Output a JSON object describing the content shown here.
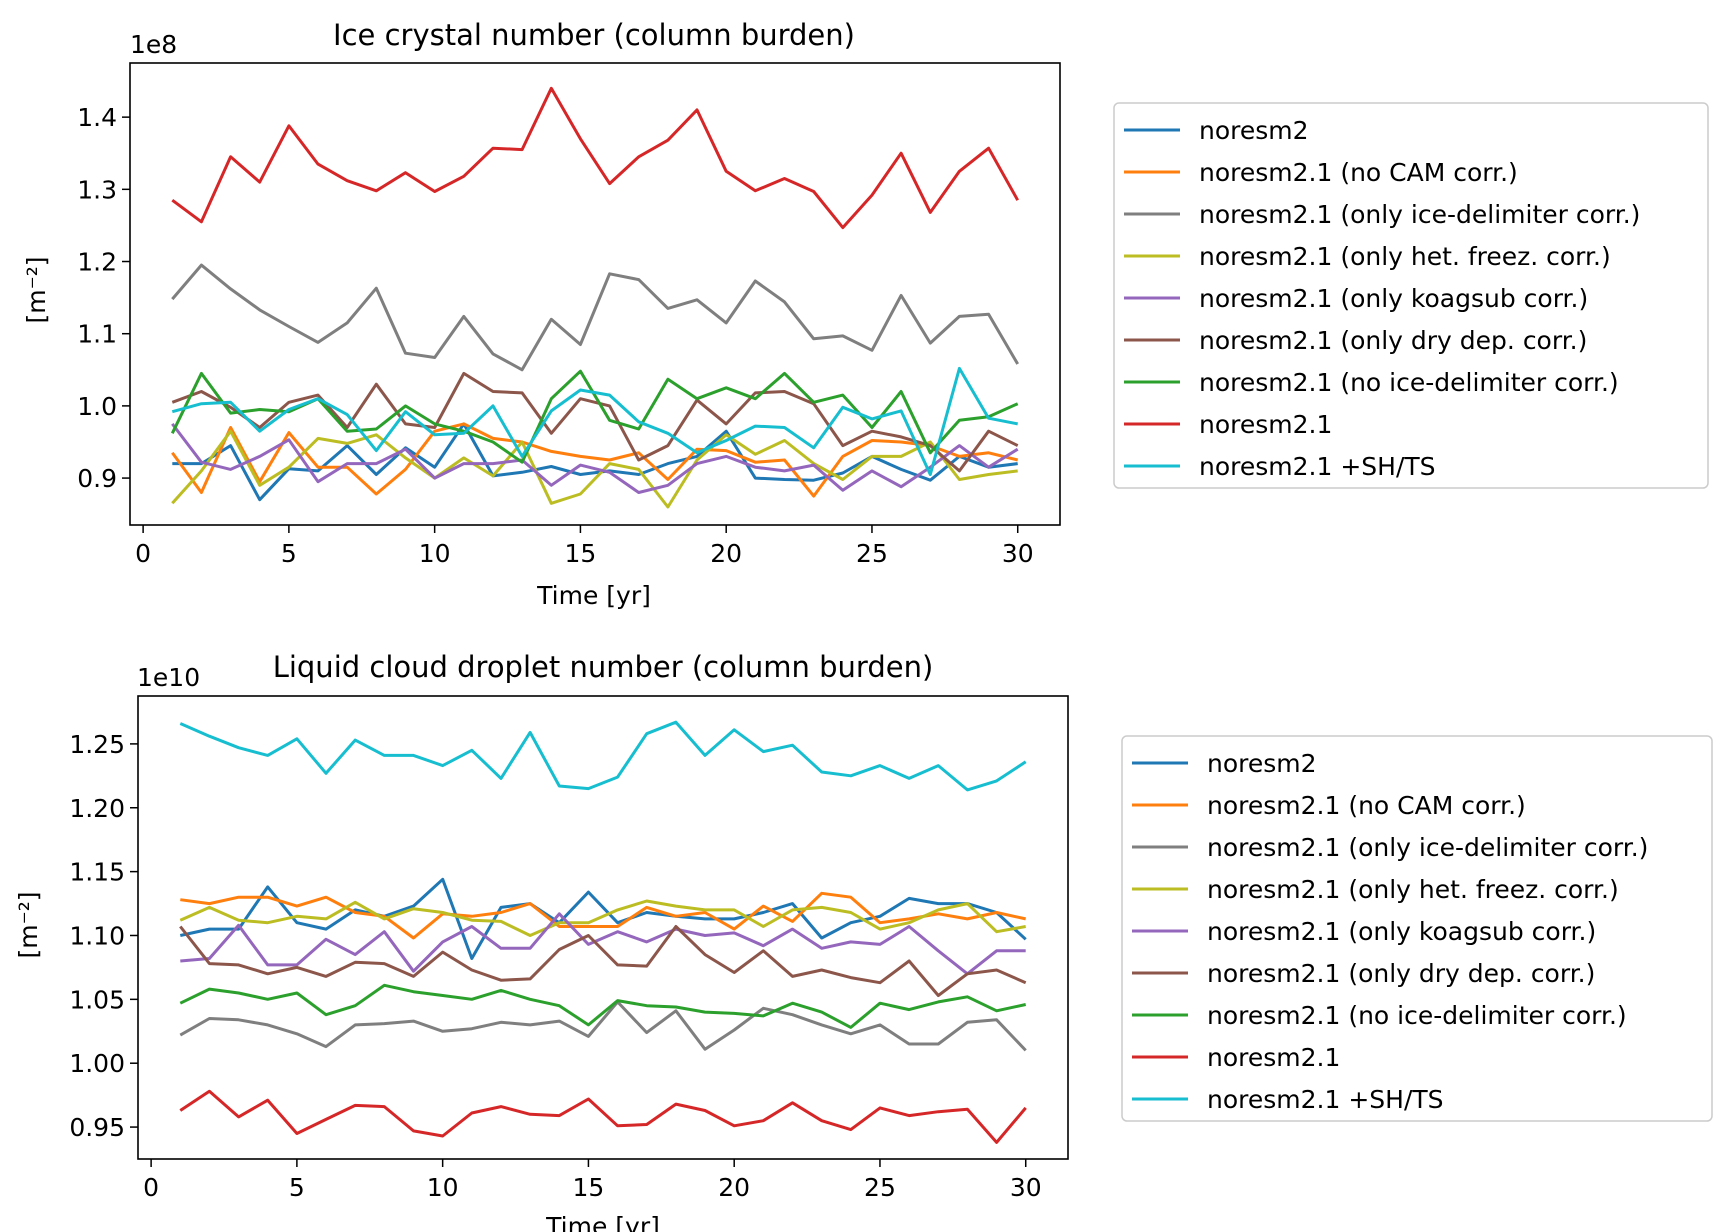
{
  "colors": {
    "tab_blue": "#1f77b4",
    "tab_orange": "#ff7f0e",
    "tab_gray": "#7f7f7f",
    "tab_olive": "#bcbd22",
    "tab_purple": "#9467bd",
    "tab_brown": "#8c564b",
    "tab_green": "#2ca02c",
    "tab_red": "#d62728",
    "tab_cyan": "#17becf"
  },
  "chart_data": [
    {
      "type": "line",
      "title": "Ice crystal number (column burden)",
      "xlabel": "Time [yr]",
      "ylabel": "[m⁻²]",
      "offset_text": "1e8",
      "xlim": [
        -0.45,
        31.45
      ],
      "ylim": [
        0.835,
        1.475
      ],
      "xticks": [
        0,
        5,
        10,
        15,
        20,
        25,
        30
      ],
      "xtick_labels": [
        "0",
        "5",
        "10",
        "15",
        "20",
        "25",
        "30"
      ],
      "yticks": [
        0.9,
        1.0,
        1.1,
        1.2,
        1.3,
        1.4
      ],
      "ytick_labels": [
        "0.9",
        "1.0",
        "1.1",
        "1.2",
        "1.3",
        "1.4"
      ],
      "grid": false,
      "legend_position": "outside-right",
      "x": [
        1,
        2,
        3,
        4,
        5,
        6,
        7,
        8,
        9,
        10,
        11,
        12,
        13,
        14,
        15,
        16,
        17,
        18,
        19,
        20,
        21,
        22,
        23,
        24,
        25,
        26,
        27,
        28,
        29,
        30
      ],
      "series": [
        {
          "name": "noresm2",
          "color": "#1f77b4",
          "values": [
            0.92,
            0.92,
            0.945,
            0.87,
            0.913,
            0.91,
            0.945,
            0.905,
            0.942,
            0.915,
            0.975,
            0.903,
            0.908,
            0.916,
            0.905,
            0.91,
            0.905,
            0.92,
            0.93,
            0.965,
            0.9,
            0.898,
            0.897,
            0.907,
            0.93,
            0.912,
            0.897,
            0.93,
            0.915,
            0.92
          ]
        },
        {
          "name": "noresm2.1 (no CAM corr.)",
          "color": "#ff7f0e",
          "values": [
            0.935,
            0.88,
            0.97,
            0.895,
            0.963,
            0.915,
            0.915,
            0.878,
            0.912,
            0.965,
            0.975,
            0.955,
            0.95,
            0.937,
            0.93,
            0.925,
            0.935,
            0.898,
            0.94,
            0.938,
            0.922,
            0.925,
            0.875,
            0.93,
            0.952,
            0.95,
            0.945,
            0.93,
            0.935,
            0.925
          ]
        },
        {
          "name": "noresm2.1 (only ice-delimiter corr.)",
          "color": "#7f7f7f",
          "values": [
            1.148,
            1.195,
            1.162,
            1.133,
            1.11,
            1.088,
            1.115,
            1.163,
            1.073,
            1.067,
            1.124,
            1.072,
            1.05,
            1.12,
            1.085,
            1.183,
            1.175,
            1.135,
            1.147,
            1.115,
            1.173,
            1.144,
            1.093,
            1.097,
            1.077,
            1.153,
            1.087,
            1.124,
            1.127,
            1.058
          ]
        },
        {
          "name": "noresm2.1 (only het. freez. corr.)",
          "color": "#bcbd22",
          "values": [
            0.865,
            0.91,
            0.965,
            0.89,
            0.915,
            0.955,
            0.948,
            0.96,
            0.928,
            0.9,
            0.928,
            0.903,
            0.95,
            0.865,
            0.878,
            0.92,
            0.912,
            0.86,
            0.925,
            0.96,
            0.933,
            0.952,
            0.92,
            0.898,
            0.93,
            0.93,
            0.95,
            0.898,
            0.905,
            0.91
          ]
        },
        {
          "name": "noresm2.1 (only koagsub corr.)",
          "color": "#9467bd",
          "values": [
            0.975,
            0.922,
            0.912,
            0.93,
            0.953,
            0.895,
            0.92,
            0.92,
            0.94,
            0.9,
            0.92,
            0.92,
            0.925,
            0.89,
            0.918,
            0.908,
            0.88,
            0.89,
            0.92,
            0.93,
            0.915,
            0.91,
            0.918,
            0.883,
            0.91,
            0.888,
            0.915,
            0.945,
            0.915,
            0.94
          ]
        },
        {
          "name": "noresm2.1 (only dry dep. corr.)",
          "color": "#8c564b",
          "values": [
            1.005,
            1.02,
            0.998,
            0.97,
            1.005,
            1.015,
            0.97,
            1.03,
            0.975,
            0.97,
            1.045,
            1.02,
            1.018,
            0.962,
            1.01,
            1.0,
            0.925,
            0.945,
            1.008,
            0.975,
            1.018,
            1.02,
            1.003,
            0.945,
            0.965,
            0.957,
            0.945,
            0.91,
            0.965,
            0.945
          ]
        },
        {
          "name": "noresm2.1 (no ice-delimiter corr.)",
          "color": "#2ca02c",
          "values": [
            0.962,
            1.045,
            0.99,
            0.995,
            0.992,
            1.01,
            0.965,
            0.968,
            1.0,
            0.975,
            0.965,
            0.95,
            0.922,
            1.01,
            1.048,
            0.98,
            0.968,
            1.037,
            1.01,
            1.025,
            1.01,
            1.045,
            1.005,
            1.015,
            0.97,
            1.02,
            0.935,
            0.98,
            0.985,
            1.003
          ]
        },
        {
          "name": "noresm2.1",
          "color": "#d62728",
          "values": [
            1.285,
            1.255,
            1.345,
            1.31,
            1.388,
            1.335,
            1.312,
            1.298,
            1.323,
            1.297,
            1.318,
            1.357,
            1.355,
            1.44,
            1.37,
            1.308,
            1.345,
            1.368,
            1.41,
            1.325,
            1.298,
            1.315,
            1.297,
            1.247,
            1.292,
            1.35,
            1.268,
            1.325,
            1.357,
            1.285
          ]
        },
        {
          "name": "noresm2.1 +SH/TS",
          "color": "#17becf",
          "values": [
            0.992,
            1.003,
            1.005,
            0.965,
            0.995,
            1.01,
            0.988,
            0.938,
            0.992,
            0.96,
            0.962,
            1.0,
            0.93,
            0.993,
            1.022,
            1.015,
            0.978,
            0.962,
            0.935,
            0.952,
            0.972,
            0.97,
            0.942,
            0.998,
            0.982,
            0.993,
            0.905,
            1.052,
            0.983,
            0.975
          ]
        }
      ]
    },
    {
      "type": "line",
      "title": "Liquid cloud droplet number (column burden)",
      "xlabel": "Time [yr]",
      "ylabel": "[m⁻²]",
      "offset_text": "1e10",
      "xlim": [
        -0.45,
        31.45
      ],
      "ylim": [
        0.925,
        1.2875
      ],
      "xticks": [
        0,
        5,
        10,
        15,
        20,
        25,
        30
      ],
      "xtick_labels": [
        "0",
        "5",
        "10",
        "15",
        "20",
        "25",
        "30"
      ],
      "yticks": [
        0.95,
        1.0,
        1.05,
        1.1,
        1.15,
        1.2,
        1.25
      ],
      "ytick_labels": [
        "0.95",
        "1.00",
        "1.05",
        "1.10",
        "1.15",
        "1.20",
        "1.25"
      ],
      "grid": false,
      "legend_position": "outside-right",
      "x": [
        1,
        2,
        3,
        4,
        5,
        6,
        7,
        8,
        9,
        10,
        11,
        12,
        13,
        14,
        15,
        16,
        17,
        18,
        19,
        20,
        21,
        22,
        23,
        24,
        25,
        26,
        27,
        28,
        29,
        30
      ],
      "series": [
        {
          "name": "noresm2",
          "color": "#1f77b4",
          "values": [
            1.1,
            1.105,
            1.105,
            1.138,
            1.11,
            1.105,
            1.12,
            1.115,
            1.123,
            1.144,
            1.082,
            1.122,
            1.125,
            1.11,
            1.134,
            1.11,
            1.118,
            1.115,
            1.113,
            1.113,
            1.118,
            1.125,
            1.098,
            1.11,
            1.115,
            1.129,
            1.125,
            1.125,
            1.118,
            1.097
          ]
        },
        {
          "name": "noresm2.1 (no CAM corr.)",
          "color": "#ff7f0e",
          "values": [
            1.128,
            1.125,
            1.13,
            1.13,
            1.123,
            1.13,
            1.118,
            1.115,
            1.098,
            1.117,
            1.115,
            1.118,
            1.125,
            1.107,
            1.107,
            1.107,
            1.122,
            1.115,
            1.118,
            1.105,
            1.123,
            1.111,
            1.133,
            1.13,
            1.11,
            1.113,
            1.117,
            1.113,
            1.118,
            1.113
          ]
        },
        {
          "name": "noresm2.1 (only ice-delimiter corr.)",
          "color": "#7f7f7f",
          "values": [
            1.022,
            1.035,
            1.034,
            1.03,
            1.023,
            1.013,
            1.03,
            1.031,
            1.033,
            1.025,
            1.027,
            1.032,
            1.03,
            1.033,
            1.021,
            1.048,
            1.024,
            1.041,
            1.011,
            1.026,
            1.043,
            1.038,
            1.03,
            1.023,
            1.03,
            1.015,
            1.015,
            1.032,
            1.034,
            1.01
          ]
        },
        {
          "name": "noresm2.1 (only het. freez. corr.)",
          "color": "#bcbd22",
          "values": [
            1.112,
            1.122,
            1.112,
            1.11,
            1.115,
            1.113,
            1.126,
            1.113,
            1.121,
            1.118,
            1.112,
            1.111,
            1.1,
            1.11,
            1.11,
            1.12,
            1.127,
            1.123,
            1.12,
            1.12,
            1.107,
            1.12,
            1.122,
            1.118,
            1.105,
            1.11,
            1.12,
            1.125,
            1.103,
            1.107
          ]
        },
        {
          "name": "noresm2.1 (only koagsub corr.)",
          "color": "#9467bd",
          "values": [
            1.08,
            1.082,
            1.108,
            1.077,
            1.077,
            1.097,
            1.085,
            1.103,
            1.072,
            1.095,
            1.107,
            1.09,
            1.09,
            1.117,
            1.093,
            1.103,
            1.095,
            1.105,
            1.1,
            1.102,
            1.092,
            1.105,
            1.09,
            1.095,
            1.093,
            1.107,
            1.088,
            1.07,
            1.088,
            1.088
          ]
        },
        {
          "name": "noresm2.1 (only dry dep. corr.)",
          "color": "#8c564b",
          "values": [
            1.107,
            1.078,
            1.077,
            1.07,
            1.075,
            1.068,
            1.079,
            1.078,
            1.068,
            1.087,
            1.073,
            1.065,
            1.066,
            1.089,
            1.1,
            1.077,
            1.076,
            1.107,
            1.085,
            1.071,
            1.088,
            1.068,
            1.073,
            1.067,
            1.063,
            1.08,
            1.053,
            1.07,
            1.073,
            1.063
          ]
        },
        {
          "name": "noresm2.1 (no ice-delimiter corr.)",
          "color": "#2ca02c",
          "values": [
            1.047,
            1.058,
            1.055,
            1.05,
            1.055,
            1.038,
            1.045,
            1.061,
            1.056,
            1.053,
            1.05,
            1.057,
            1.05,
            1.045,
            1.03,
            1.049,
            1.045,
            1.044,
            1.04,
            1.039,
            1.037,
            1.047,
            1.04,
            1.028,
            1.047,
            1.042,
            1.048,
            1.052,
            1.041,
            1.046
          ]
        },
        {
          "name": "noresm2.1",
          "color": "#d62728",
          "values": [
            0.963,
            0.978,
            0.958,
            0.971,
            0.945,
            0.956,
            0.967,
            0.966,
            0.947,
            0.943,
            0.961,
            0.966,
            0.96,
            0.959,
            0.972,
            0.951,
            0.952,
            0.968,
            0.963,
            0.951,
            0.955,
            0.969,
            0.955,
            0.948,
            0.965,
            0.959,
            0.962,
            0.964,
            0.938,
            0.965
          ]
        },
        {
          "name": "noresm2.1 +SH/TS",
          "color": "#17becf",
          "values": [
            1.266,
            1.256,
            1.247,
            1.241,
            1.254,
            1.227,
            1.253,
            1.241,
            1.241,
            1.233,
            1.245,
            1.223,
            1.259,
            1.217,
            1.215,
            1.224,
            1.258,
            1.267,
            1.241,
            1.261,
            1.244,
            1.249,
            1.228,
            1.225,
            1.233,
            1.223,
            1.233,
            1.214,
            1.221,
            1.236
          ]
        }
      ]
    }
  ]
}
